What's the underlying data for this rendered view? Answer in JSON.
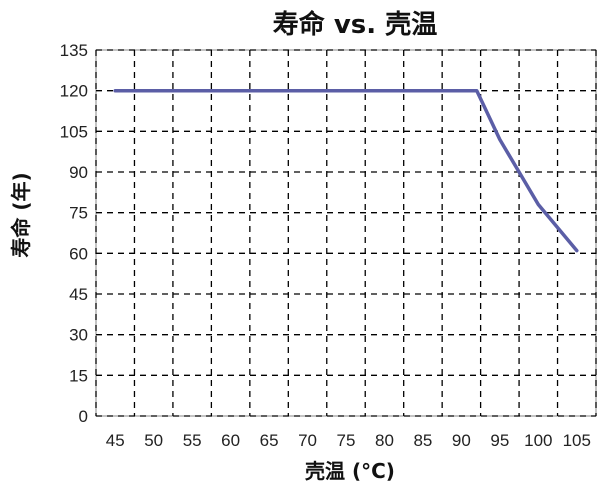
{
  "chart_data": {
    "type": "line",
    "title": "寿命 vs. 壳温",
    "xlabel": "壳温 (°C)",
    "ylabel": "寿命 (年)",
    "x_tick_labels": [
      "45",
      "50",
      "55",
      "60",
      "65",
      "70",
      "75",
      "80",
      "85",
      "90",
      "95",
      "100",
      "105"
    ],
    "y_ticks": [
      0,
      15,
      30,
      45,
      60,
      75,
      90,
      105,
      120,
      135
    ],
    "ylim": [
      0,
      135
    ],
    "xlim": [
      45,
      105
    ],
    "grid": true,
    "legend": "none",
    "series": [
      {
        "color": "#5b5ea6",
        "x": [
          45,
          50,
          55,
          60,
          65,
          70,
          75,
          80,
          85,
          90,
          92,
          95,
          100,
          105
        ],
        "y": [
          120,
          120,
          120,
          120,
          120,
          120,
          120,
          120,
          120,
          120,
          120,
          102,
          78,
          61
        ]
      }
    ]
  }
}
